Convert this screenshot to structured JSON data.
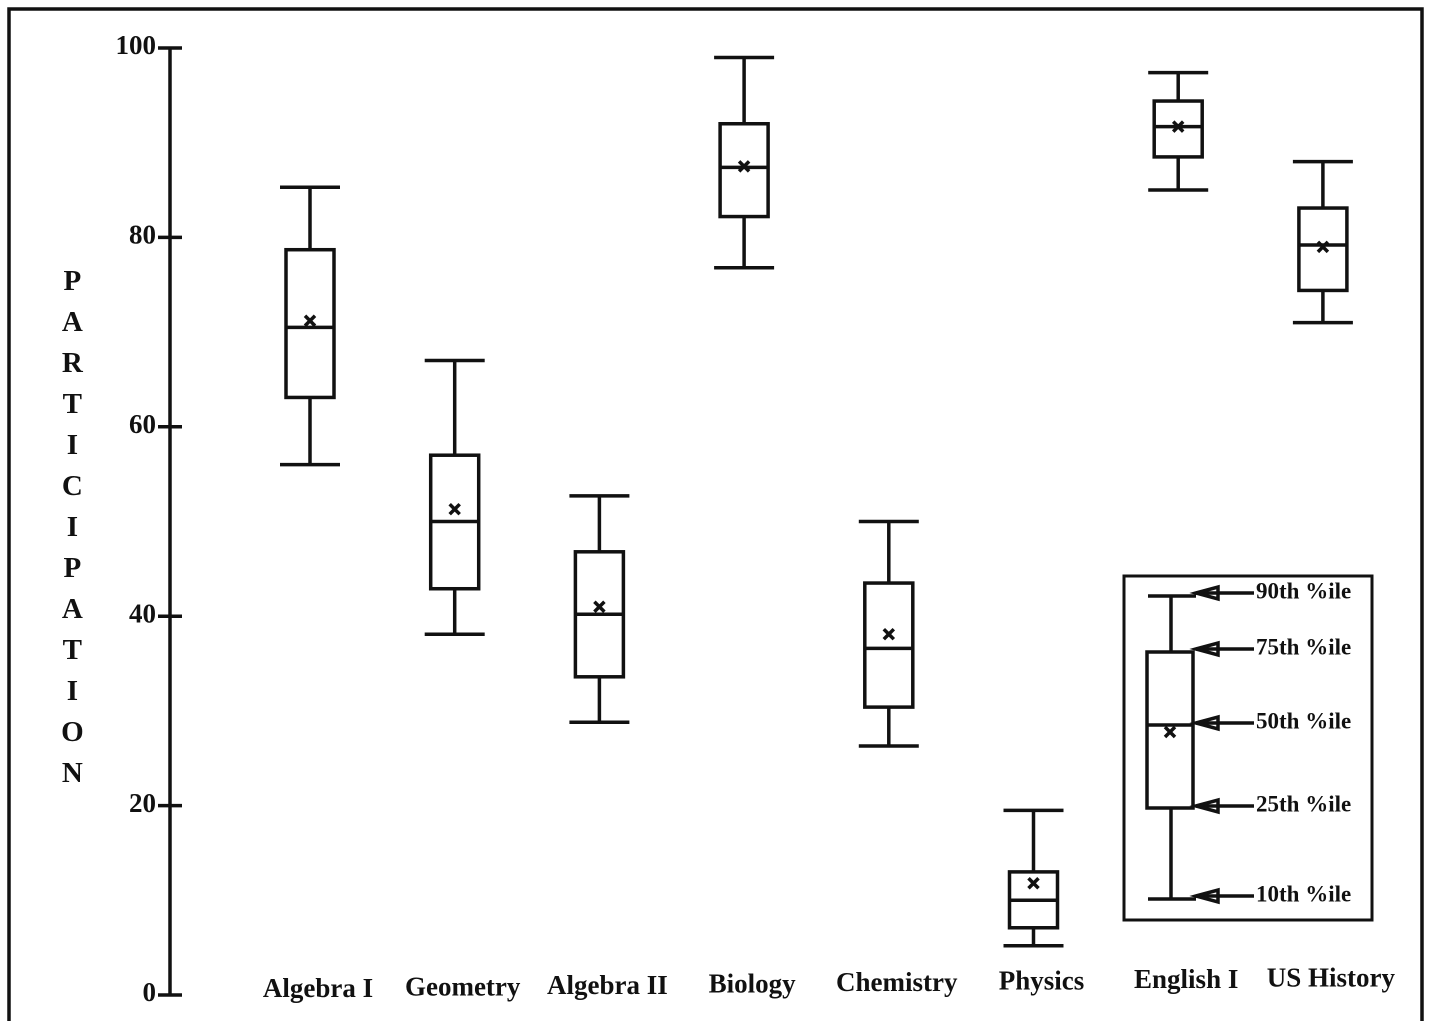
{
  "chart_data": {
    "type": "box",
    "ylabel": "PARTICIPATION",
    "categories": [
      "Algebra I",
      "Geometry",
      "Algebra II",
      "Biology",
      "Chemistry",
      "Physics",
      "English I",
      "US History"
    ],
    "whisker_low": [
      56,
      38.1,
      28.8,
      76.8,
      26.3,
      5.2,
      85,
      71
    ],
    "q1": [
      63.1,
      42.9,
      33.6,
      82.2,
      30.4,
      7.1,
      88.5,
      74.4
    ],
    "median": [
      70.5,
      50,
      40.2,
      87.4,
      36.6,
      10,
      91.7,
      79.2
    ],
    "q3": [
      78.7,
      57,
      46.8,
      92,
      43.5,
      13,
      94.4,
      83.1
    ],
    "whisker_high": [
      85.3,
      67,
      52.7,
      99,
      50,
      19.5,
      97.4,
      88
    ],
    "mean": [
      71.2,
      51.3,
      41,
      87.5,
      38.1,
      11.8,
      91.7,
      79
    ],
    "ylim": [
      0,
      100
    ],
    "yticks": [
      0,
      20,
      40,
      60,
      80,
      100
    ],
    "color": "#111111",
    "legend": {
      "labels": [
        "90th %ile",
        "75th %ile",
        "50th %ile",
        "25th %ile",
        "10th %ile"
      ]
    }
  }
}
